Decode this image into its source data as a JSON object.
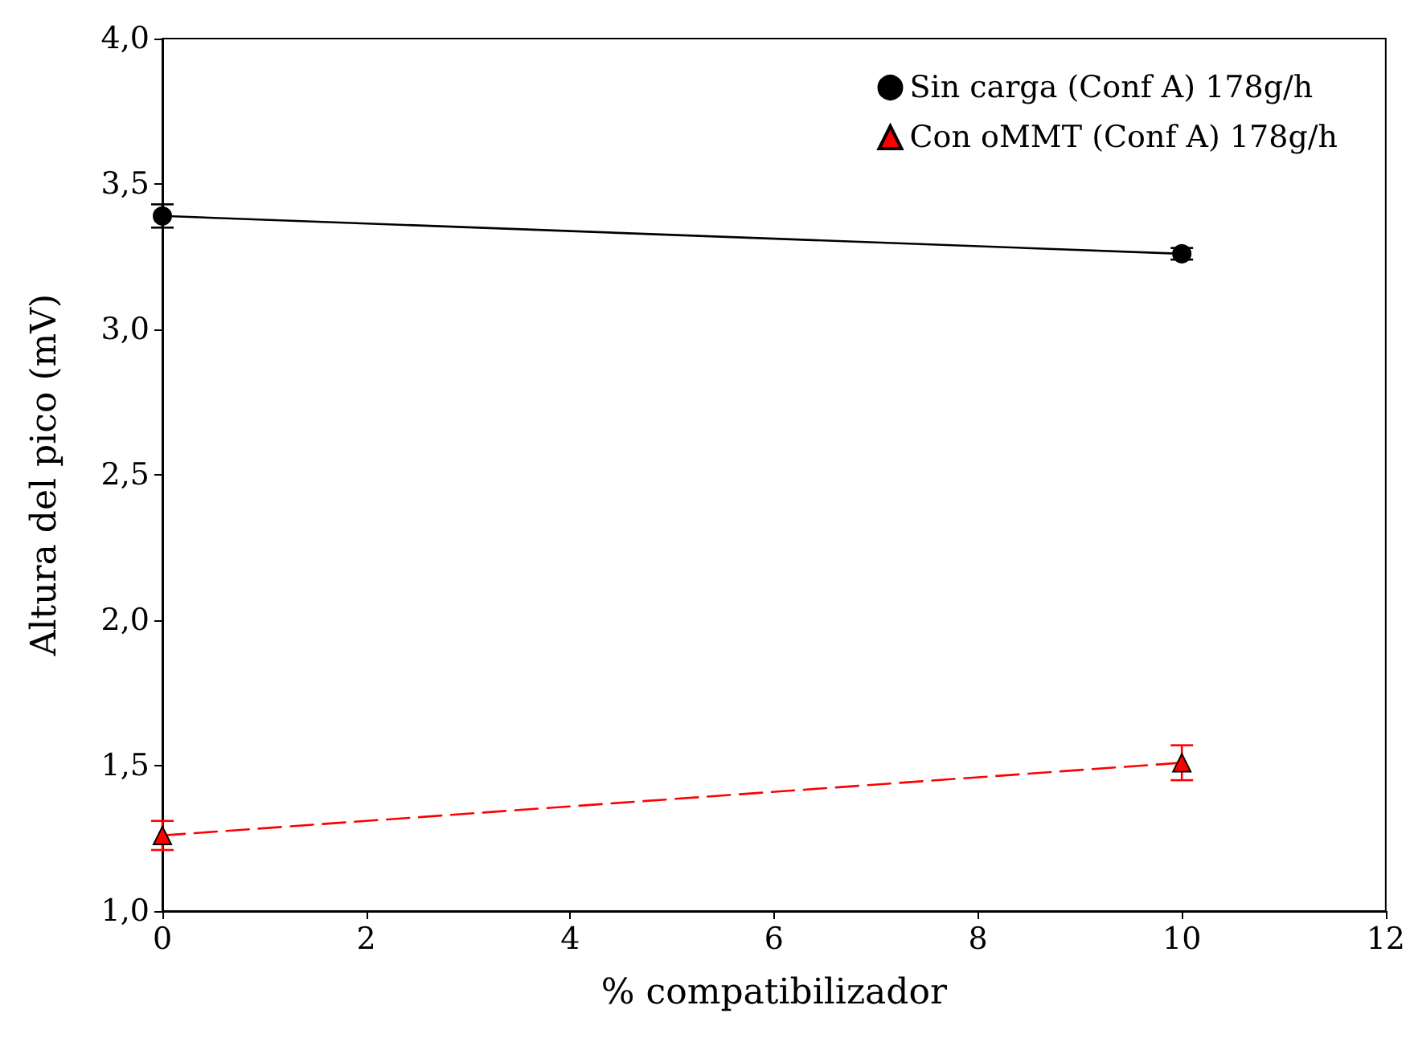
{
  "chart_data": {
    "type": "line",
    "xlabel": "% compatibilizador",
    "ylabel": "Altura del pico (mV)",
    "x": [
      0,
      10
    ],
    "xlim": [
      0,
      12
    ],
    "xticks": [
      0,
      2,
      4,
      6,
      8,
      10,
      12
    ],
    "ylim": [
      1,
      4
    ],
    "yticks": [
      {
        "value": 1,
        "label": "1,0"
      },
      {
        "value": 1.5,
        "label": "1,5"
      },
      {
        "value": 2,
        "label": "2,0"
      },
      {
        "value": 2.5,
        "label": "2,5"
      },
      {
        "value": 3,
        "label": "3,0"
      },
      {
        "value": 3.5,
        "label": "3,5"
      },
      {
        "value": 4,
        "label": "4,0"
      }
    ],
    "grid": false,
    "legend": "top right",
    "series": [
      {
        "name": "Sin carga (Conf A) 178g/h",
        "color": "#000000",
        "values": [
          3.39,
          3.26
        ],
        "errors": [
          0.04,
          0.02
        ],
        "marker": "circle",
        "line_style": "solid"
      },
      {
        "name": "Con oMMT (Conf A) 178g/h",
        "color": "#ff0000",
        "values": [
          1.26,
          1.51
        ],
        "errors": [
          0.05,
          0.06
        ],
        "marker": "triangle",
        "line_style": "dashed"
      }
    ]
  }
}
